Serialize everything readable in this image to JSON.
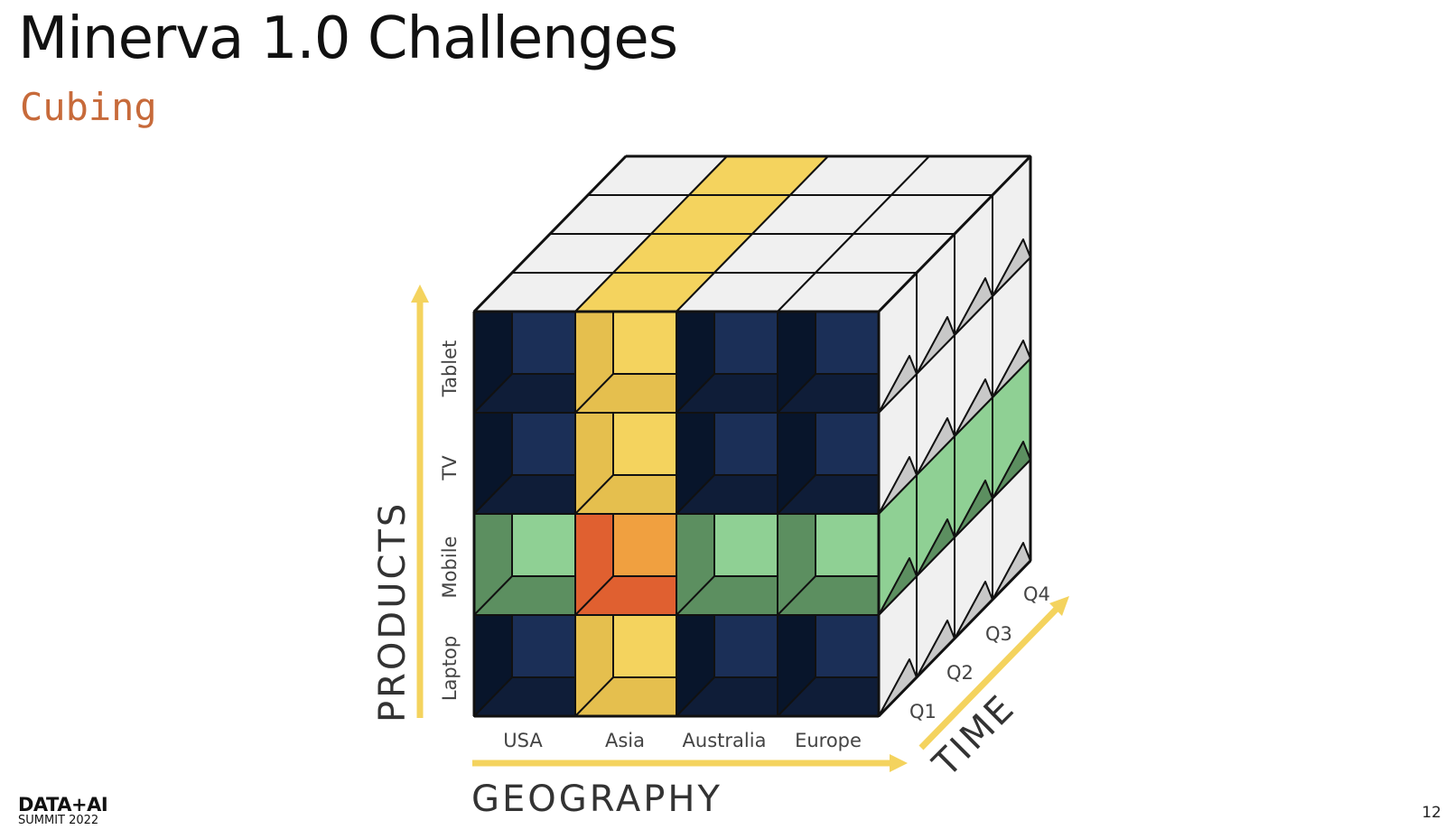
{
  "slide": {
    "title": "Minerva 1.0 Challenges",
    "subtitle": "Cubing",
    "page_number": "12"
  },
  "brand": {
    "line1": "DATA+AI",
    "line2": "SUMMIT 2022"
  },
  "diagram": {
    "axes": {
      "products": "PRODUCTS",
      "geography": "GEOGRAPHY",
      "time": "TIME"
    },
    "product_labels": [
      "Laptop",
      "Mobile",
      "TV",
      "Tablet"
    ],
    "geography_labels": [
      "USA",
      "Asia",
      "Australia",
      "Europe"
    ],
    "time_labels": [
      "Q1",
      "Q2",
      "Q3",
      "Q4"
    ],
    "colors": {
      "base_front": "#1b2f57",
      "base_side": "#0f1d38",
      "base_dark": "#08152b",
      "geo_slice_front": "#f4d35e",
      "geo_slice_side": "#e5bf4e",
      "product_slice_front": "#8fd094",
      "product_slice_side": "#5c8f60",
      "intersection_front": "#f0a040",
      "intersection_side": "#e06030",
      "back_face": "#f0f0f0",
      "back_shade": "#c8c8c8",
      "arrow": "#f4d35e"
    }
  }
}
